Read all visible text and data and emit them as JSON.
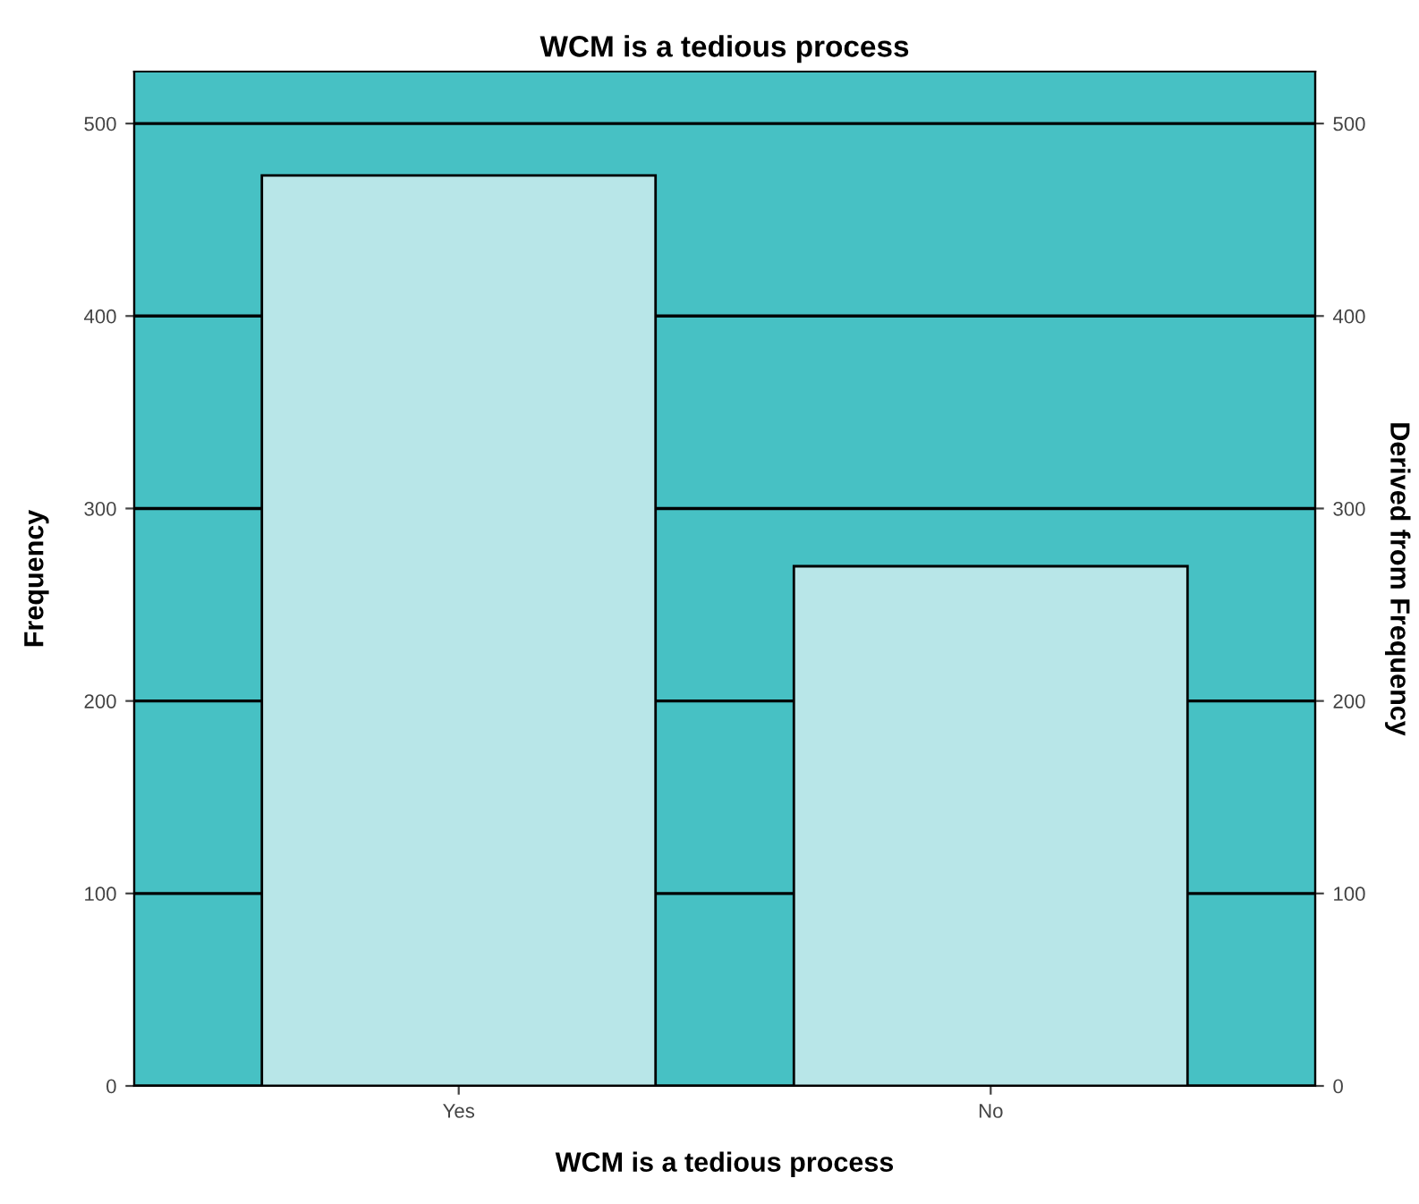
{
  "chart_data": {
    "type": "bar",
    "title": "WCM is a tedious process",
    "xlabel": "WCM is a tedious process",
    "ylabel": "Frequency",
    "y2label": "Derived from Frequency",
    "categories": [
      "Yes",
      "No"
    ],
    "values": [
      473,
      270
    ],
    "color": "#b8e6e8",
    "ylim": [
      0,
      527
    ],
    "yticks": [
      0,
      100,
      200,
      300,
      400,
      500
    ],
    "y2lim": [
      0,
      527
    ],
    "y2ticks": [
      0,
      100,
      200,
      300,
      400,
      500
    ],
    "grid": "y"
  }
}
